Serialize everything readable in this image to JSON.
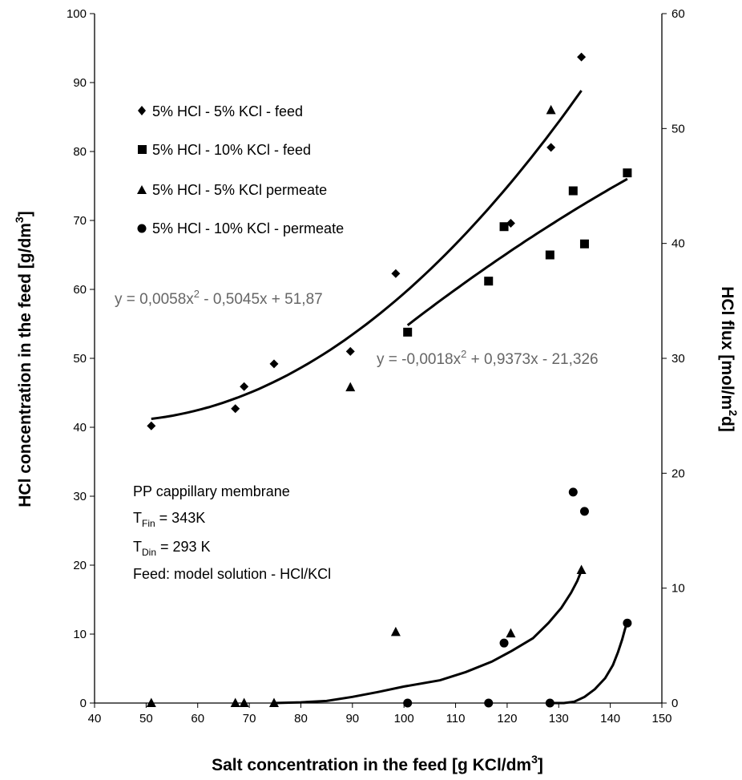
{
  "chart_data": {
    "type": "scatter",
    "xlabel": "Salt concentration in the feed [g KCl/dm",
    "xlabel_sup": "3",
    "xlabel_end": "]",
    "ylabel": "HCl concentration in the feed [g/dm",
    "ylabel_sup": "3",
    "ylabel_end": "]",
    "y2label": "HCl flux [mol/m",
    "y2label_sup": "2",
    "y2label_end": "d]",
    "xlim": [
      40,
      150
    ],
    "ylim": [
      0,
      100
    ],
    "y2lim": [
      0,
      60
    ],
    "x_ticks": [
      40,
      50,
      60,
      70,
      80,
      90,
      100,
      110,
      120,
      130,
      140,
      150
    ],
    "y_ticks": [
      0,
      10,
      20,
      30,
      40,
      50,
      60,
      70,
      80,
      90,
      100
    ],
    "y2_ticks": [
      0,
      10,
      20,
      30,
      40,
      50,
      60
    ],
    "grid": false,
    "legend_position": "top-left",
    "series": [
      {
        "name": "5% HCl - 5% KCl - feed",
        "marker": "diamond",
        "axis": "left",
        "points": [
          [
            51,
            40.2
          ],
          [
            67.3,
            42.7
          ],
          [
            69,
            45.9
          ],
          [
            74.8,
            49.2
          ],
          [
            89.6,
            51
          ],
          [
            98.4,
            62.3
          ],
          [
            120.7,
            69.6
          ],
          [
            128.5,
            80.6
          ],
          [
            134.4,
            93.7
          ]
        ]
      },
      {
        "name": "5% HCl - 10% KCl - feed",
        "marker": "square",
        "axis": "left",
        "points": [
          [
            100.7,
            53.8
          ],
          [
            116.4,
            61.2
          ],
          [
            119.4,
            69.1
          ],
          [
            128.3,
            65
          ],
          [
            132.8,
            74.3
          ],
          [
            135,
            66.6
          ],
          [
            143.3,
            76.9
          ]
        ]
      },
      {
        "name": "5% HCl - 5% KCl permeate",
        "marker": "triangle",
        "axis": "left",
        "points": [
          [
            51,
            0
          ],
          [
            67.3,
            0
          ],
          [
            69,
            0
          ],
          [
            74.8,
            0
          ],
          [
            89.6,
            45.8
          ],
          [
            98.4,
            10.3
          ],
          [
            120.7,
            10.1
          ],
          [
            128.5,
            86
          ],
          [
            134.4,
            19.3
          ]
        ]
      },
      {
        "name": "5% HCl - 10% KCl - permeate",
        "marker": "circle",
        "axis": "left",
        "points": [
          [
            100.7,
            0
          ],
          [
            116.4,
            0
          ],
          [
            119.4,
            8.7
          ],
          [
            128.3,
            0
          ],
          [
            132.8,
            30.6
          ],
          [
            135,
            27.8
          ],
          [
            143.3,
            11.6
          ]
        ]
      }
    ],
    "trendlines": [
      {
        "name": "feed 5% KCl fit",
        "type": "poly2",
        "coeffs": [
          0.0058,
          -0.5045,
          51.87
        ],
        "x_range": [
          51,
          134.4
        ],
        "axis": "left"
      },
      {
        "name": "feed 10% KCl fit",
        "type": "poly2",
        "coeffs": [
          -0.0018,
          0.9373,
          -21.326
        ],
        "x_range": [
          100.7,
          143.3
        ],
        "axis": "left"
      },
      {
        "name": "permeate 5% KCl curve",
        "type": "path",
        "axis": "left",
        "points": [
          [
            74.8,
            0
          ],
          [
            80,
            0.1
          ],
          [
            85,
            0.3
          ],
          [
            90,
            0.9
          ],
          [
            95,
            1.6
          ],
          [
            100,
            2.4
          ],
          [
            107,
            3.3
          ],
          [
            112,
            4.5
          ],
          [
            117,
            6.0
          ],
          [
            121,
            7.6
          ],
          [
            125,
            9.4
          ],
          [
            128,
            11.6
          ],
          [
            130.5,
            13.8
          ],
          [
            132.4,
            16.0
          ],
          [
            133.6,
            17.7
          ],
          [
            134.3,
            19.0
          ]
        ]
      },
      {
        "name": "permeate 10% KCl curve",
        "type": "path",
        "axis": "left",
        "points": [
          [
            128.3,
            0
          ],
          [
            131,
            0
          ],
          [
            133,
            0.2
          ],
          [
            135,
            0.9
          ],
          [
            137,
            2.0
          ],
          [
            139,
            3.6
          ],
          [
            140.5,
            5.5
          ],
          [
            141.5,
            7.4
          ],
          [
            142.3,
            9.2
          ],
          [
            142.8,
            10.6
          ],
          [
            143.2,
            11.6
          ]
        ]
      }
    ],
    "equations": [
      {
        "text": "y = 0,0058x",
        "sup": "2",
        "rest": " - 0,5045x + 51,87"
      },
      {
        "text": "y = -0,0018x",
        "sup": "2",
        "rest": " + 0,9373x - 21,326"
      }
    ],
    "annotation": {
      "line1": "PP cappillary membrane",
      "line2_main": "T",
      "line2_sub": "Fin",
      "line2_rest": " = 343K",
      "line3_main": "T",
      "line3_sub": "Din",
      "line3_rest": " = 293 K",
      "line4": "Feed: model solution - HCl/KCl"
    }
  }
}
